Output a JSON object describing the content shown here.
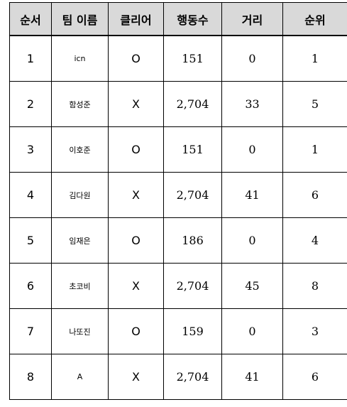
{
  "table": {
    "headers": {
      "order": "순서",
      "team": "팀 이름",
      "clear": "클리어",
      "moves": "행동수",
      "distance": "거리",
      "rank": "순위"
    },
    "rows": [
      {
        "order": "1",
        "team": "icn",
        "clear": "O",
        "moves": "151",
        "distance": "0",
        "rank": "1"
      },
      {
        "order": "2",
        "team": "함성준",
        "clear": "X",
        "moves": "2,704",
        "distance": "33",
        "rank": "5"
      },
      {
        "order": "3",
        "team": "이호준",
        "clear": "O",
        "moves": "151",
        "distance": "0",
        "rank": "1"
      },
      {
        "order": "4",
        "team": "김다원",
        "clear": "X",
        "moves": "2,704",
        "distance": "41",
        "rank": "6"
      },
      {
        "order": "5",
        "team": "임재은",
        "clear": "O",
        "moves": "186",
        "distance": "0",
        "rank": "4"
      },
      {
        "order": "6",
        "team": "초코비",
        "clear": "X",
        "moves": "2,704",
        "distance": "45",
        "rank": "8"
      },
      {
        "order": "7",
        "team": "나또진",
        "clear": "O",
        "moves": "159",
        "distance": "0",
        "rank": "3"
      },
      {
        "order": "8",
        "team": "A",
        "clear": "X",
        "moves": "2,704",
        "distance": "41",
        "rank": "6"
      }
    ]
  }
}
